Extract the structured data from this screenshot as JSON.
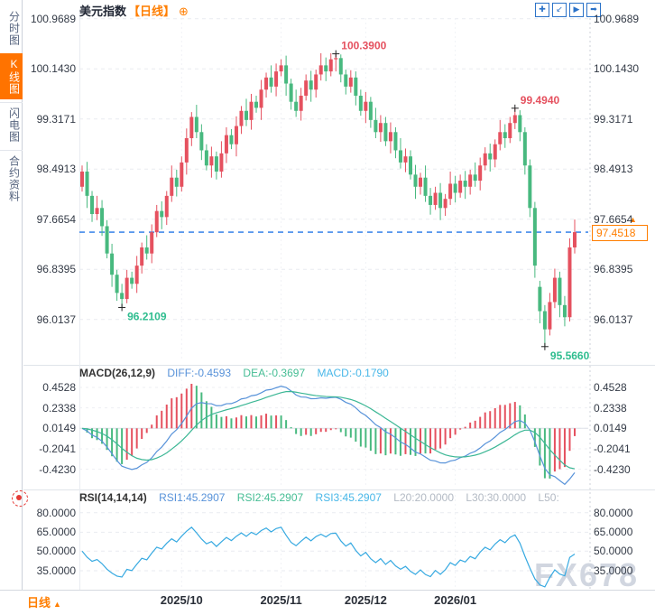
{
  "header": {
    "title": "美元指数",
    "period": "【日线】",
    "plus": "⊕"
  },
  "toolbar": {
    "icons": [
      {
        "name": "crosshair",
        "glyph": "✚"
      },
      {
        "name": "zoom-area",
        "glyph": "↙"
      },
      {
        "name": "play-scale",
        "glyph": "▶"
      },
      {
        "name": "exit-chart",
        "glyph": "➡"
      }
    ]
  },
  "sidebar": {
    "tabs": [
      {
        "label": "分时图",
        "active": false
      },
      {
        "label": "K线图",
        "active": true
      },
      {
        "label": "闪电图",
        "active": false
      },
      {
        "label": "合约资料",
        "active": false
      }
    ]
  },
  "price_box": {
    "value": "97.4518",
    "arrow": "▲"
  },
  "bottom_bar": {
    "period": "日线",
    "arrow": "▲"
  },
  "watermark": "FX678",
  "chart_data": {
    "type": "candlestick",
    "symbol": "美元指数",
    "interval": "日线",
    "main": {
      "axis_labels": [
        "100.9689",
        "100.1430",
        "99.3171",
        "98.4913",
        "97.6654",
        "96.8395",
        "96.0137"
      ],
      "axis_values": [
        100.9689,
        100.143,
        99.3171,
        98.4913,
        97.6654,
        96.8395,
        96.0137
      ],
      "current_price": 97.4518,
      "annotations": [
        {
          "index": 51,
          "price": 100.39,
          "label": "100.3900",
          "kind": "high",
          "color": "#e5515f"
        },
        {
          "index": 87,
          "price": 99.494,
          "label": "99.4940",
          "kind": "high",
          "color": "#e5515f"
        },
        {
          "index": 8,
          "price": 96.2109,
          "label": "96.2109",
          "kind": "low",
          "color": "#2fbd8f"
        },
        {
          "index": 93,
          "price": 95.566,
          "label": "95.5660",
          "kind": "low",
          "color": "#2fbd8f"
        }
      ],
      "candles": [
        [
          98.2,
          98.55,
          98.12,
          98.45
        ],
        [
          98.45,
          98.61,
          97.85,
          98.05
        ],
        [
          98.05,
          98.13,
          97.62,
          97.75
        ],
        [
          97.75,
          98.05,
          97.65,
          97.85
        ],
        [
          97.85,
          97.98,
          97.39,
          97.55
        ],
        [
          97.55,
          97.65,
          97.02,
          97.1
        ],
        [
          97.1,
          97.26,
          96.55,
          96.75
        ],
        [
          96.75,
          96.83,
          96.32,
          96.45
        ],
        [
          96.45,
          96.6,
          96.2109,
          96.35
        ],
        [
          96.35,
          96.83,
          96.28,
          96.7
        ],
        [
          96.7,
          96.8,
          96.52,
          96.6
        ],
        [
          96.6,
          97.06,
          96.45,
          96.9
        ],
        [
          96.9,
          97.28,
          96.77,
          97.2
        ],
        [
          97.2,
          97.4,
          97.0,
          97.1
        ],
        [
          97.1,
          97.58,
          96.94,
          97.45
        ],
        [
          97.45,
          97.9,
          97.37,
          97.8
        ],
        [
          97.8,
          97.96,
          97.5,
          97.7
        ],
        [
          97.7,
          98.13,
          97.57,
          98.05
        ],
        [
          98.05,
          98.55,
          97.95,
          98.35
        ],
        [
          98.35,
          98.48,
          98.04,
          98.2
        ],
        [
          98.2,
          98.7,
          98.12,
          98.6
        ],
        [
          98.6,
          99.16,
          98.4,
          99.0
        ],
        [
          99.0,
          99.43,
          98.87,
          99.35
        ],
        [
          99.35,
          99.55,
          99.0,
          99.1
        ],
        [
          99.1,
          99.23,
          98.64,
          98.8
        ],
        [
          98.8,
          98.9,
          98.47,
          98.55
        ],
        [
          98.55,
          98.86,
          98.35,
          98.7
        ],
        [
          98.7,
          98.78,
          98.32,
          98.45
        ],
        [
          98.45,
          98.95,
          98.35,
          98.75
        ],
        [
          98.75,
          99.18,
          98.59,
          99.05
        ],
        [
          99.05,
          99.15,
          98.82,
          98.9
        ],
        [
          98.9,
          99.36,
          98.7,
          99.2
        ],
        [
          99.2,
          99.53,
          99.07,
          99.45
        ],
        [
          99.45,
          99.65,
          99.2,
          99.3
        ],
        [
          99.3,
          99.73,
          99.14,
          99.6
        ],
        [
          99.6,
          99.7,
          99.42,
          99.5
        ],
        [
          99.5,
          99.96,
          99.3,
          99.8
        ],
        [
          99.8,
          100.08,
          99.67,
          100.0
        ],
        [
          100.0,
          100.2,
          99.75,
          99.85
        ],
        [
          99.85,
          100.23,
          99.69,
          100.1
        ],
        [
          100.1,
          100.3,
          100.02,
          100.2
        ],
        [
          100.2,
          100.36,
          99.7,
          99.9
        ],
        [
          99.9,
          99.98,
          99.47,
          99.6
        ],
        [
          99.6,
          99.8,
          99.35,
          99.45
        ],
        [
          99.45,
          99.83,
          99.29,
          99.7
        ],
        [
          99.7,
          100.05,
          99.62,
          99.95
        ],
        [
          99.95,
          100.11,
          99.6,
          99.8
        ],
        [
          99.8,
          100.13,
          99.67,
          100.05
        ],
        [
          100.05,
          100.4,
          99.95,
          100.2
        ],
        [
          100.2,
          100.33,
          99.94,
          100.1
        ],
        [
          100.1,
          100.4,
          100.02,
          100.3
        ],
        [
          100.3,
          100.39,
          100.1,
          100.32
        ],
        [
          100.32,
          100.38,
          99.92,
          100.05
        ],
        [
          100.05,
          100.13,
          99.72,
          99.85
        ],
        [
          99.85,
          100.12,
          99.75,
          100.0
        ],
        [
          100.0,
          100.1,
          99.54,
          99.7
        ],
        [
          99.7,
          99.8,
          99.37,
          99.45
        ],
        [
          99.45,
          99.76,
          99.25,
          99.6
        ],
        [
          99.6,
          99.68,
          99.17,
          99.3
        ],
        [
          99.3,
          99.5,
          99.0,
          99.1
        ],
        [
          99.1,
          99.38,
          98.94,
          99.25
        ],
        [
          99.25,
          99.35,
          98.87,
          98.95
        ],
        [
          98.95,
          99.26,
          98.75,
          99.1
        ],
        [
          99.1,
          99.18,
          98.67,
          98.8
        ],
        [
          98.8,
          99.0,
          98.5,
          98.6
        ],
        [
          98.6,
          98.83,
          98.44,
          98.7
        ],
        [
          98.7,
          98.8,
          98.32,
          98.4
        ],
        [
          98.4,
          98.56,
          98.0,
          98.2
        ],
        [
          98.2,
          98.43,
          98.07,
          98.35
        ],
        [
          98.35,
          98.55,
          97.95,
          98.05
        ],
        [
          98.05,
          98.18,
          97.74,
          97.9
        ],
        [
          97.9,
          98.2,
          97.82,
          98.1
        ],
        [
          98.1,
          98.26,
          97.65,
          97.85
        ],
        [
          97.85,
          98.08,
          97.72,
          98.0
        ],
        [
          98.0,
          98.45,
          97.9,
          98.25
        ],
        [
          98.25,
          98.38,
          97.94,
          98.1
        ],
        [
          98.1,
          98.4,
          98.02,
          98.3
        ],
        [
          98.3,
          98.46,
          98.0,
          98.2
        ],
        [
          98.2,
          98.48,
          98.07,
          98.4
        ],
        [
          98.4,
          98.6,
          98.2,
          98.3
        ],
        [
          98.3,
          98.68,
          98.14,
          98.55
        ],
        [
          98.55,
          98.85,
          98.47,
          98.75
        ],
        [
          98.75,
          98.91,
          98.45,
          98.65
        ],
        [
          98.65,
          98.98,
          98.52,
          98.9
        ],
        [
          98.9,
          99.3,
          98.8,
          99.1
        ],
        [
          99.1,
          99.23,
          98.84,
          99.0
        ],
        [
          99.0,
          99.35,
          98.92,
          99.25
        ],
        [
          99.25,
          99.494,
          99.15,
          99.38
        ],
        [
          99.38,
          99.46,
          98.95,
          99.1
        ],
        [
          99.1,
          99.18,
          98.4,
          98.55
        ],
        [
          98.55,
          98.65,
          97.7,
          97.85
        ],
        [
          97.85,
          97.95,
          96.7,
          96.9
        ],
        [
          96.55,
          96.65,
          95.95,
          96.15
        ],
        [
          96.15,
          96.25,
          95.566,
          95.85
        ],
        [
          95.85,
          96.45,
          95.75,
          96.3
        ],
        [
          96.3,
          96.85,
          96.2,
          96.7
        ],
        [
          96.7,
          96.8,
          96.05,
          96.25
        ],
        [
          96.25,
          96.4,
          95.9,
          96.05
        ],
        [
          96.05,
          97.35,
          95.98,
          97.2
        ],
        [
          97.2,
          97.66,
          97.1,
          97.4518
        ]
      ]
    },
    "x_axis": {
      "month_ticks": [
        {
          "index": 20,
          "label": "2025/10"
        },
        {
          "index": 40,
          "label": "2025/11"
        },
        {
          "index": 57,
          "label": "2025/12"
        },
        {
          "index": 75,
          "label": "2026/01"
        }
      ]
    },
    "macd": {
      "title": "MACD(26,12,9)",
      "values": {
        "diff": "DIFF:-0.4593",
        "dea": "DEA:-0.3697",
        "macd": "MACD:-0.1790"
      },
      "params": {
        "fast": 12,
        "slow": 26,
        "signal": 9
      },
      "axis_labels": [
        "0.4528",
        "0.2338",
        "0.0149",
        "-0.2041",
        "-0.4230"
      ]
    },
    "rsi": {
      "title": "RSI(14,14,14)",
      "values": {
        "rsi1": "RSI1:45.2907",
        "rsi2": "RSI2:45.2907",
        "rsi3": "RSI3:45.2907",
        "l20": "L20:20.0000",
        "l30": "L30:30.0000",
        "l50": "L50:"
      },
      "period": 14,
      "axis_labels": [
        "80.0000",
        "65.0000",
        "50.0000",
        "35.0000"
      ]
    },
    "colors": {
      "up": "#e5515f",
      "down": "#48b97f",
      "diff_line": "#5792d9",
      "dea_line": "#3cb795",
      "rsi_line": "#36a9e1",
      "price_line": "#2276e6",
      "accent": "#ff7e00"
    }
  }
}
